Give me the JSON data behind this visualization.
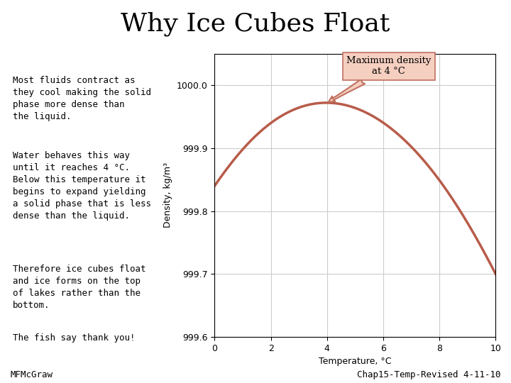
{
  "title": "Why Ice Cubes Float",
  "title_fontsize": 26,
  "title_font": "serif",
  "bg_color": "#ffffff",
  "text_blocks": [
    "Most fluids contract as\nthey cool making the solid\nphase more dense than\nthe liquid.",
    "Water behaves this way\nuntil it reaches 4 °C.\nBelow this temperature it\nbegins to expand yielding\na solid phase that is less\ndense than the liquid.",
    "Therefore ice cubes float\nand ice forms on the top\nof lakes rather than the\nbottom.",
    "The fish say thank you!"
  ],
  "footer_left": "MFMcGraw",
  "footer_right": "Chap15-Temp-Revised 4-11-10",
  "plot_xlabel": "Temperature, °C",
  "plot_ylabel": "Density, kg/m³",
  "plot_xlim": [
    0,
    10
  ],
  "plot_ylim": [
    999.6,
    1000.05
  ],
  "plot_yticks": [
    999.6,
    999.7,
    999.8,
    999.9,
    1000.0
  ],
  "plot_ytick_labels": [
    "999.6",
    "999.7",
    "999.8",
    "999.9",
    "1000.0"
  ],
  "plot_xticks": [
    0,
    2,
    4,
    6,
    8,
    10
  ],
  "curve_color": "#b85c4a",
  "annotation_text": "Maximum density\nat 4 °C",
  "annotation_box_facecolor": "#f5cfc0",
  "annotation_box_edgecolor": "#c07060",
  "grid_color": "#cccccc",
  "text_fontsize": 9,
  "footer_fontsize": 9,
  "xlabel_fontsize": 9,
  "ylabel_fontsize": 9,
  "tick_fontsize": 9
}
